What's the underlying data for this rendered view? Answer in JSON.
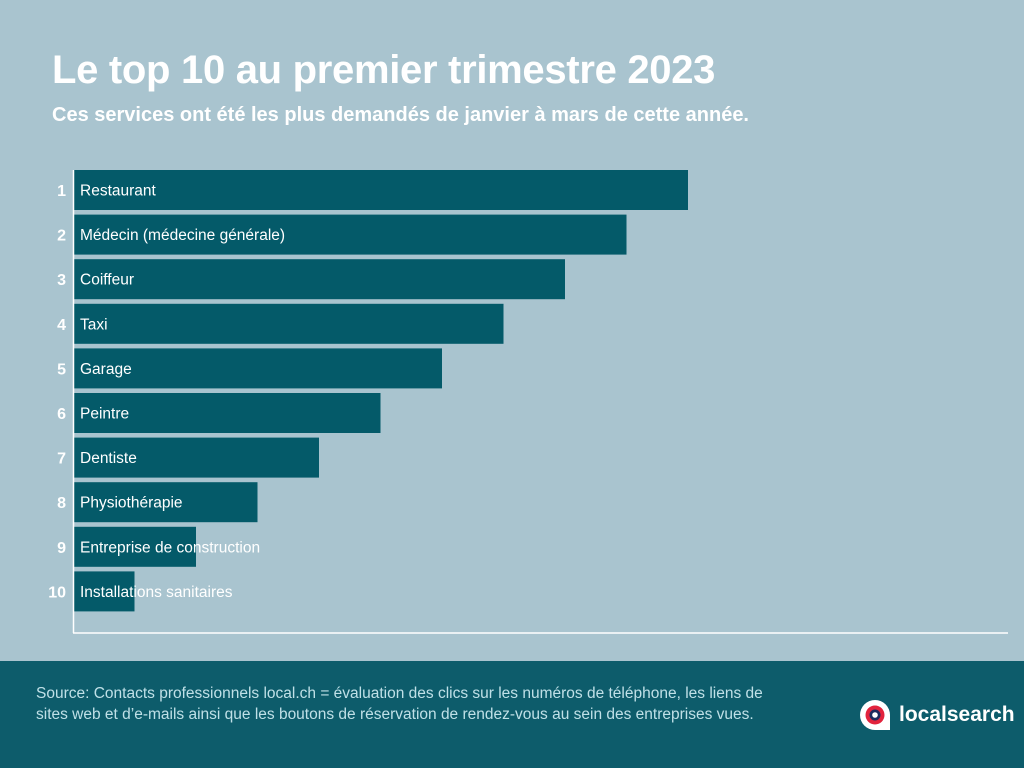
{
  "header": {
    "title": "Le top 10 au premier trimestre 2023",
    "subtitle": "Ces services ont été les plus demandés de janvier à mars de cette année."
  },
  "chart_data": {
    "type": "bar",
    "orientation": "horizontal",
    "ranks": [
      "1",
      "2",
      "3",
      "4",
      "5",
      "6",
      "7",
      "8",
      "9",
      "10"
    ],
    "categories": [
      "Restaurant",
      "Médecin (médecine générale)",
      "Coiffeur",
      "Taxi",
      "Garage",
      "Peintre",
      "Dentiste",
      "Physiothérapie",
      "Entreprise de construction",
      "Installations sanitaires"
    ],
    "values": [
      10,
      9,
      8,
      7,
      6,
      5,
      4,
      3,
      2,
      1
    ],
    "xlim": [
      0,
      16
    ],
    "grid": false,
    "colors": {
      "bar": "#045a69",
      "bar_label": "#ffffff",
      "rank_label": "#ffffff",
      "axis": "#ffffff"
    }
  },
  "footer": {
    "source": "Source: Contacts professionnels local.ch = évaluation des clics sur les numéros de téléphone, les liens de sites web et d’e-mails ainsi que les boutons de réservation de rendez-vous au sein des entreprises vues.",
    "logo_text": "localsearch",
    "logo_icon": "localsearch-logo-icon"
  }
}
